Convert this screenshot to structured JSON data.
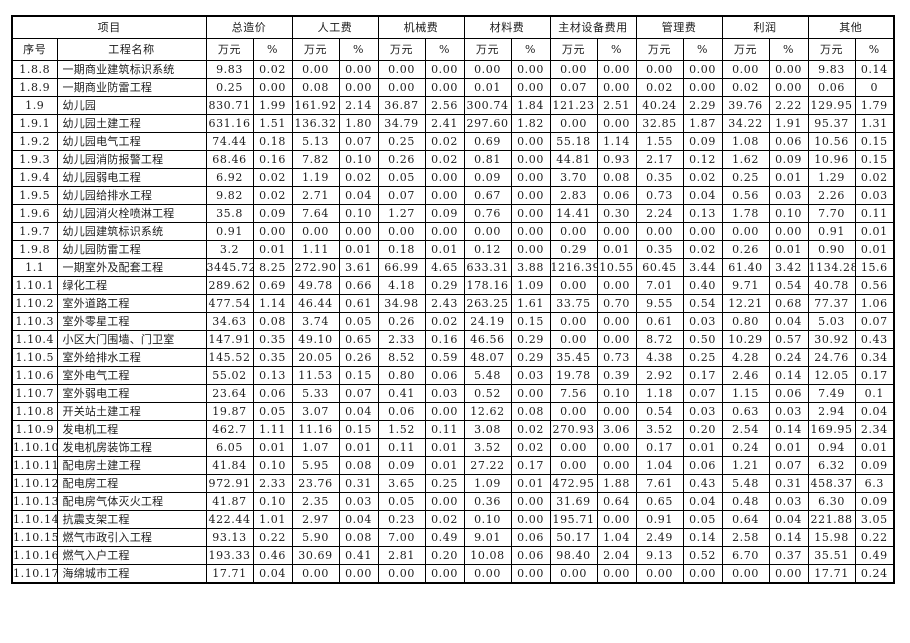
{
  "table": {
    "header": {
      "project_label": "项目",
      "seq_label": "序号",
      "name_label": "工程名称",
      "unit_label": "万元",
      "percent_label": "%",
      "groups": [
        "总造价",
        "人工费",
        "机械费",
        "材料费",
        "主材设备费用",
        "管理费",
        "利润",
        "其他"
      ]
    },
    "rows": [
      {
        "seq": "1.8.8",
        "name": "一期商业建筑标识系统",
        "values": [
          "9.83",
          "0.02",
          "0.00",
          "0.00",
          "0.00",
          "0.00",
          "0.00",
          "0.00",
          "0.00",
          "0.00",
          "0.00",
          "0.00",
          "0.00",
          "0.00",
          "9.83",
          "0.14"
        ]
      },
      {
        "seq": "1.8.9",
        "name": "一期商业防雷工程",
        "values": [
          "0.25",
          "0.00",
          "0.08",
          "0.00",
          "0.00",
          "0.00",
          "0.01",
          "0.00",
          "0.07",
          "0.00",
          "0.02",
          "0.00",
          "0.02",
          "0.00",
          "0.06",
          "0"
        ]
      },
      {
        "seq": "1.9",
        "name": "幼儿园",
        "values": [
          "830.71",
          "1.99",
          "161.92",
          "2.14",
          "36.87",
          "2.56",
          "300.74",
          "1.84",
          "121.23",
          "2.51",
          "40.24",
          "2.29",
          "39.76",
          "2.22",
          "129.95",
          "1.79"
        ]
      },
      {
        "seq": "1.9.1",
        "name": "幼儿园土建工程",
        "values": [
          "631.16",
          "1.51",
          "136.32",
          "1.80",
          "34.79",
          "2.41",
          "297.60",
          "1.82",
          "0.00",
          "0.00",
          "32.85",
          "1.87",
          "34.22",
          "1.91",
          "95.37",
          "1.31"
        ]
      },
      {
        "seq": "1.9.2",
        "name": "幼儿园电气工程",
        "values": [
          "74.44",
          "0.18",
          "5.13",
          "0.07",
          "0.25",
          "0.02",
          "0.69",
          "0.00",
          "55.18",
          "1.14",
          "1.55",
          "0.09",
          "1.08",
          "0.06",
          "10.56",
          "0.15"
        ]
      },
      {
        "seq": "1.9.3",
        "name": "幼儿园消防报警工程",
        "values": [
          "68.46",
          "0.16",
          "7.82",
          "0.10",
          "0.26",
          "0.02",
          "0.81",
          "0.00",
          "44.81",
          "0.93",
          "2.17",
          "0.12",
          "1.62",
          "0.09",
          "10.96",
          "0.15"
        ]
      },
      {
        "seq": "1.9.4",
        "name": "幼儿园弱电工程",
        "values": [
          "6.92",
          "0.02",
          "1.19",
          "0.02",
          "0.05",
          "0.00",
          "0.09",
          "0.00",
          "3.70",
          "0.08",
          "0.35",
          "0.02",
          "0.25",
          "0.01",
          "1.29",
          "0.02"
        ]
      },
      {
        "seq": "1.9.5",
        "name": "幼儿园给排水工程",
        "values": [
          "9.82",
          "0.02",
          "2.71",
          "0.04",
          "0.07",
          "0.00",
          "0.67",
          "0.00",
          "2.83",
          "0.06",
          "0.73",
          "0.04",
          "0.56",
          "0.03",
          "2.26",
          "0.03"
        ]
      },
      {
        "seq": "1.9.6",
        "name": "幼儿园消火栓喷淋工程",
        "values": [
          "35.8",
          "0.09",
          "7.64",
          "0.10",
          "1.27",
          "0.09",
          "0.76",
          "0.00",
          "14.41",
          "0.30",
          "2.24",
          "0.13",
          "1.78",
          "0.10",
          "7.70",
          "0.11"
        ]
      },
      {
        "seq": "1.9.7",
        "name": "幼儿园建筑标识系统",
        "values": [
          "0.91",
          "0.00",
          "0.00",
          "0.00",
          "0.00",
          "0.00",
          "0.00",
          "0.00",
          "0.00",
          "0.00",
          "0.00",
          "0.00",
          "0.00",
          "0.00",
          "0.91",
          "0.01"
        ]
      },
      {
        "seq": "1.9.8",
        "name": "幼儿园防雷工程",
        "values": [
          "3.2",
          "0.01",
          "1.11",
          "0.01",
          "0.18",
          "0.01",
          "0.12",
          "0.00",
          "0.29",
          "0.01",
          "0.35",
          "0.02",
          "0.26",
          "0.01",
          "0.90",
          "0.01"
        ]
      },
      {
        "seq": "1.1",
        "name": "一期室外及配套工程",
        "values": [
          "3445.72",
          "8.25",
          "272.90",
          "3.61",
          "66.99",
          "4.65",
          "633.31",
          "3.88",
          "1216.39",
          "10.55",
          "60.45",
          "3.44",
          "61.40",
          "3.42",
          "1134.28",
          "15.6"
        ]
      },
      {
        "seq": "1.10.1",
        "name": "绿化工程",
        "values": [
          "289.62",
          "0.69",
          "49.78",
          "0.66",
          "4.18",
          "0.29",
          "178.16",
          "1.09",
          "0.00",
          "0.00",
          "7.01",
          "0.40",
          "9.71",
          "0.54",
          "40.78",
          "0.56"
        ]
      },
      {
        "seq": "1.10.2",
        "name": "室外道路工程",
        "values": [
          "477.54",
          "1.14",
          "46.44",
          "0.61",
          "34.98",
          "2.43",
          "263.25",
          "1.61",
          "33.75",
          "0.70",
          "9.55",
          "0.54",
          "12.21",
          "0.68",
          "77.37",
          "1.06"
        ]
      },
      {
        "seq": "1.10.3",
        "name": "室外零星工程",
        "values": [
          "34.63",
          "0.08",
          "3.74",
          "0.05",
          "0.26",
          "0.02",
          "24.19",
          "0.15",
          "0.00",
          "0.00",
          "0.61",
          "0.03",
          "0.80",
          "0.04",
          "5.03",
          "0.07"
        ]
      },
      {
        "seq": "1.10.4",
        "name": "小区大门围墙、门卫室",
        "values": [
          "147.91",
          "0.35",
          "49.10",
          "0.65",
          "2.33",
          "0.16",
          "46.56",
          "0.29",
          "0.00",
          "0.00",
          "8.72",
          "0.50",
          "10.29",
          "0.57",
          "30.92",
          "0.43"
        ]
      },
      {
        "seq": "1.10.5",
        "name": "室外给排水工程",
        "values": [
          "145.52",
          "0.35",
          "20.05",
          "0.26",
          "8.52",
          "0.59",
          "48.07",
          "0.29",
          "35.45",
          "0.73",
          "4.38",
          "0.25",
          "4.28",
          "0.24",
          "24.76",
          "0.34"
        ]
      },
      {
        "seq": "1.10.6",
        "name": "室外电气工程",
        "values": [
          "55.02",
          "0.13",
          "11.53",
          "0.15",
          "0.80",
          "0.06",
          "5.48",
          "0.03",
          "19.78",
          "0.39",
          "2.92",
          "0.17",
          "2.46",
          "0.14",
          "12.05",
          "0.17"
        ]
      },
      {
        "seq": "1.10.7",
        "name": "室外弱电工程",
        "values": [
          "23.64",
          "0.06",
          "5.33",
          "0.07",
          "0.41",
          "0.03",
          "0.52",
          "0.00",
          "7.56",
          "0.10",
          "1.18",
          "0.07",
          "1.15",
          "0.06",
          "7.49",
          "0.1"
        ]
      },
      {
        "seq": "1.10.8",
        "name": "开关站土建工程",
        "values": [
          "19.87",
          "0.05",
          "3.07",
          "0.04",
          "0.06",
          "0.00",
          "12.62",
          "0.08",
          "0.00",
          "0.00",
          "0.54",
          "0.03",
          "0.63",
          "0.03",
          "2.94",
          "0.04"
        ]
      },
      {
        "seq": "1.10.9",
        "name": "发电机工程",
        "values": [
          "462.7",
          "1.11",
          "11.16",
          "0.15",
          "1.52",
          "0.11",
          "3.08",
          "0.02",
          "270.93",
          "3.06",
          "3.52",
          "0.20",
          "2.54",
          "0.14",
          "169.95",
          "2.34"
        ]
      },
      {
        "seq": "1.10.10",
        "name": "发电机房装饰工程",
        "values": [
          "6.05",
          "0.01",
          "1.07",
          "0.01",
          "0.11",
          "0.01",
          "3.52",
          "0.02",
          "0.00",
          "0.00",
          "0.17",
          "0.01",
          "0.24",
          "0.01",
          "0.94",
          "0.01"
        ]
      },
      {
        "seq": "1.10.11",
        "name": "配电房土建工程",
        "values": [
          "41.84",
          "0.10",
          "5.95",
          "0.08",
          "0.09",
          "0.01",
          "27.22",
          "0.17",
          "0.00",
          "0.00",
          "1.04",
          "0.06",
          "1.21",
          "0.07",
          "6.32",
          "0.09"
        ]
      },
      {
        "seq": "1.10.12",
        "name": "配电房工程",
        "values": [
          "972.91",
          "2.33",
          "23.76",
          "0.31",
          "3.65",
          "0.25",
          "1.09",
          "0.01",
          "472.95",
          "1.88",
          "7.61",
          "0.43",
          "5.48",
          "0.31",
          "458.37",
          "6.3"
        ]
      },
      {
        "seq": "1.10.13",
        "name": "配电房气体灭火工程",
        "values": [
          "41.87",
          "0.10",
          "2.35",
          "0.03",
          "0.05",
          "0.00",
          "0.36",
          "0.00",
          "31.69",
          "0.64",
          "0.65",
          "0.04",
          "0.48",
          "0.03",
          "6.30",
          "0.09"
        ]
      },
      {
        "seq": "1.10.14",
        "name": "抗震支架工程",
        "values": [
          "422.44",
          "1.01",
          "2.97",
          "0.04",
          "0.23",
          "0.02",
          "0.10",
          "0.00",
          "195.71",
          "0.00",
          "0.91",
          "0.05",
          "0.64",
          "0.04",
          "221.88",
          "3.05"
        ]
      },
      {
        "seq": "1.10.15",
        "name": "燃气市政引入工程",
        "values": [
          "93.13",
          "0.22",
          "5.90",
          "0.08",
          "7.00",
          "0.49",
          "9.01",
          "0.06",
          "50.17",
          "1.04",
          "2.49",
          "0.14",
          "2.58",
          "0.14",
          "15.98",
          "0.22"
        ]
      },
      {
        "seq": "1.10.16",
        "name": "燃气入户工程",
        "values": [
          "193.33",
          "0.46",
          "30.69",
          "0.41",
          "2.81",
          "0.20",
          "10.08",
          "0.06",
          "98.40",
          "2.04",
          "9.13",
          "0.52",
          "6.70",
          "0.37",
          "35.51",
          "0.49"
        ]
      },
      {
        "seq": "1.10.17",
        "name": "海绵城市工程",
        "values": [
          "17.71",
          "0.04",
          "0.00",
          "0.00",
          "0.00",
          "0.00",
          "0.00",
          "0.00",
          "0.00",
          "0.00",
          "0.00",
          "0.00",
          "0.00",
          "0.00",
          "17.71",
          "0.24"
        ]
      }
    ]
  },
  "colors": {
    "border": "#000000",
    "text": "#1c1c1c",
    "background": "#ffffff"
  }
}
